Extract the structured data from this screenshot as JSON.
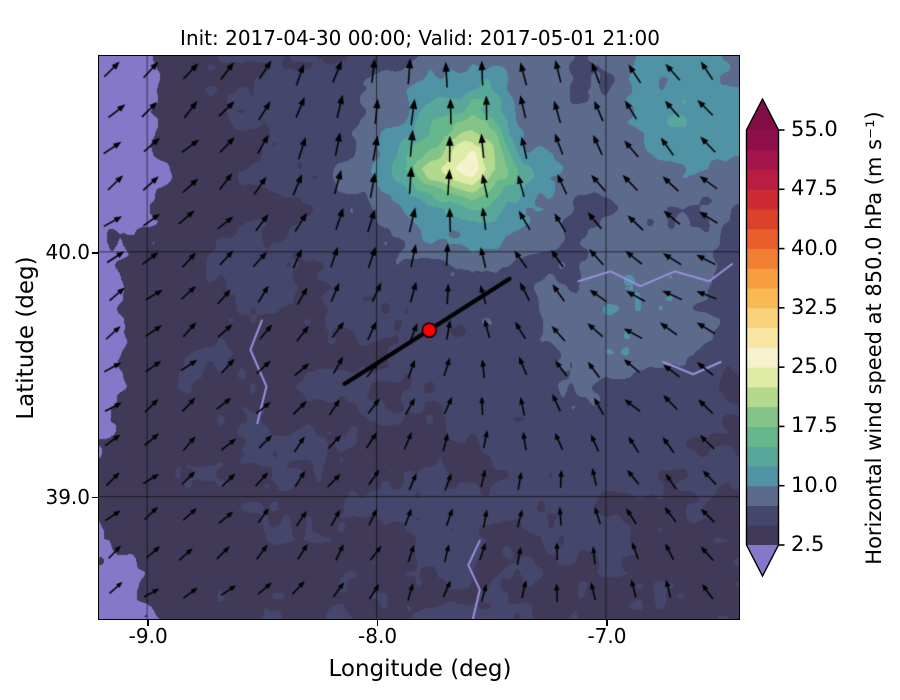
{
  "chart_data": {
    "type": "heatmap",
    "title": "Init: 2017-04-30 00:00; Valid: 2017-05-01 21:00",
    "xlabel": "Longitude (deg)",
    "ylabel": "Latitude (deg)",
    "colorbar_label": "Horizontal wind speed at 850.0 hPa (m s⁻¹)",
    "xlim": [
      -9.21,
      -6.42
    ],
    "ylim": [
      38.5,
      40.8
    ],
    "grid": true,
    "xticks": {
      "values": [
        -9.0,
        -8.0,
        -7.0
      ],
      "labels": [
        "-9.0",
        "-8.0",
        "-7.0"
      ]
    },
    "yticks": {
      "values": [
        39.0,
        40.0
      ],
      "labels": [
        "39.0",
        "40.0"
      ]
    },
    "colorbar": {
      "range": [
        2.5,
        55.0
      ],
      "bin_size": 2.5,
      "extend": "both",
      "tick_values": [
        2.5,
        10.0,
        17.5,
        25.0,
        32.5,
        40.0,
        47.5,
        55.0
      ],
      "tick_labels": [
        "2.5",
        "10.0",
        "17.5",
        "25.0",
        "32.5",
        "40.0",
        "47.5",
        "55.0"
      ],
      "under_color": "#8678c8",
      "over_color": "#7e0e44",
      "bin_colors": [
        "#403a58",
        "#44466b",
        "#5c6a8c",
        "#4f93a4",
        "#57a89b",
        "#66b88c",
        "#85c489",
        "#b2d98e",
        "#dfeca5",
        "#f6f2cd",
        "#f8e6a2",
        "#f9d27b",
        "#f9ba55",
        "#f79e40",
        "#f17f33",
        "#e95f2b",
        "#dc4229",
        "#cc2b33",
        "#b91d42",
        "#a3154b",
        "#8e104a"
      ]
    },
    "wind_speed_grid": {
      "units": "m s-1",
      "lon_range": [
        -9.21,
        -6.42
      ],
      "lat_range": [
        40.8,
        38.5
      ],
      "values": [
        [
          1.5,
          1.8,
          4.0,
          5.0,
          5.0,
          6.0,
          8.0,
          9.0,
          8.0,
          7.0,
          9.0,
          11.0,
          10.0
        ],
        [
          1.5,
          2.0,
          4.5,
          5.0,
          5.5,
          7.0,
          12.0,
          16.0,
          10.0,
          8.0,
          10.0,
          12.0,
          11.0
        ],
        [
          1.6,
          2.2,
          4.5,
          5.0,
          6.0,
          8.0,
          18.0,
          27.0,
          12.0,
          8.0,
          9.0,
          10.0,
          9.0
        ],
        [
          1.7,
          2.5,
          4.5,
          5.0,
          5.5,
          7.0,
          10.0,
          12.0,
          9.0,
          7.0,
          8.0,
          8.0,
          7.0
        ],
        [
          1.8,
          3.0,
          4.5,
          5.0,
          5.0,
          5.5,
          6.0,
          7.0,
          7.0,
          8.0,
          10.0,
          9.0,
          7.0
        ],
        [
          2.0,
          3.5,
          4.5,
          5.0,
          5.0,
          5.5,
          6.0,
          6.0,
          7.0,
          9.0,
          10.0,
          8.0,
          6.0
        ],
        [
          2.2,
          4.0,
          4.5,
          5.0,
          5.0,
          5.0,
          5.5,
          6.0,
          6.0,
          7.0,
          7.0,
          6.0,
          5.0
        ],
        [
          2.4,
          4.0,
          4.5,
          4.5,
          5.0,
          5.0,
          5.0,
          5.5,
          6.0,
          6.0,
          6.0,
          5.0,
          5.0
        ],
        [
          2.5,
          4.0,
          4.5,
          4.5,
          4.5,
          5.0,
          5.0,
          5.0,
          5.5,
          5.5,
          5.0,
          5.0,
          4.5
        ],
        [
          2.0,
          3.0,
          4.0,
          4.5,
          4.5,
          5.0,
          5.0,
          5.0,
          5.0,
          5.0,
          5.0,
          4.5,
          4.5
        ],
        [
          1.8,
          2.5,
          4.0,
          4.5,
          4.5,
          5.0,
          5.5,
          5.0,
          5.0,
          5.0,
          4.5,
          4.5,
          4.0
        ]
      ]
    },
    "quiver": {
      "lon_range": [
        -9.1,
        -6.5
      ],
      "lat_range": [
        40.7,
        38.6
      ],
      "u": [
        [
          1.2,
          1.0,
          0.6,
          0.2,
          -0.4,
          -0.8,
          -1.0
        ],
        [
          1.2,
          1.0,
          0.6,
          0.3,
          -0.6,
          -1.0,
          -1.2
        ],
        [
          1.1,
          0.9,
          0.7,
          0.5,
          -0.8,
          -1.3,
          -1.4
        ],
        [
          1.0,
          0.9,
          0.8,
          0.6,
          -0.3,
          -1.0,
          -1.2
        ],
        [
          0.9,
          0.8,
          0.7,
          0.5,
          0.2,
          -0.5,
          -0.9
        ],
        [
          0.8,
          0.8,
          0.6,
          0.4,
          0.2,
          -0.2,
          -0.6
        ]
      ],
      "v": [
        [
          1.0,
          1.2,
          1.6,
          2.2,
          1.8,
          1.4,
          1.2
        ],
        [
          0.9,
          1.0,
          1.8,
          2.4,
          1.6,
          1.2,
          1.0
        ],
        [
          0.8,
          0.9,
          1.2,
          1.5,
          1.2,
          0.8,
          0.7
        ],
        [
          0.7,
          0.8,
          0.9,
          1.1,
          1.2,
          0.9,
          0.8
        ],
        [
          0.7,
          0.8,
          0.9,
          1.0,
          1.1,
          1.0,
          0.9
        ],
        [
          0.6,
          0.7,
          0.9,
          1.0,
          1.1,
          1.1,
          1.0
        ]
      ]
    },
    "cross_section_line": {
      "lon": [
        -8.14,
        -7.42
      ],
      "lat": [
        39.46,
        39.89
      ],
      "color": "#000000"
    },
    "marker": {
      "lon": -7.77,
      "lat": 39.68,
      "color": "#ff0000"
    },
    "rivers": [
      {
        "points": [
          [
            -7.58,
            38.5
          ],
          [
            -7.55,
            38.62
          ],
          [
            -7.6,
            38.72
          ],
          [
            -7.55,
            38.82
          ]
        ]
      },
      {
        "points": [
          [
            -7.12,
            39.88
          ],
          [
            -6.98,
            39.92
          ],
          [
            -6.85,
            39.86
          ],
          [
            -6.7,
            39.92
          ],
          [
            -6.55,
            39.88
          ],
          [
            -6.45,
            39.95
          ]
        ]
      },
      {
        "points": [
          [
            -8.52,
            39.3
          ],
          [
            -8.48,
            39.45
          ],
          [
            -8.55,
            39.6
          ],
          [
            -8.5,
            39.72
          ]
        ]
      },
      {
        "points": [
          [
            -6.75,
            39.55
          ],
          [
            -6.62,
            39.5
          ],
          [
            -6.5,
            39.55
          ]
        ]
      }
    ]
  }
}
